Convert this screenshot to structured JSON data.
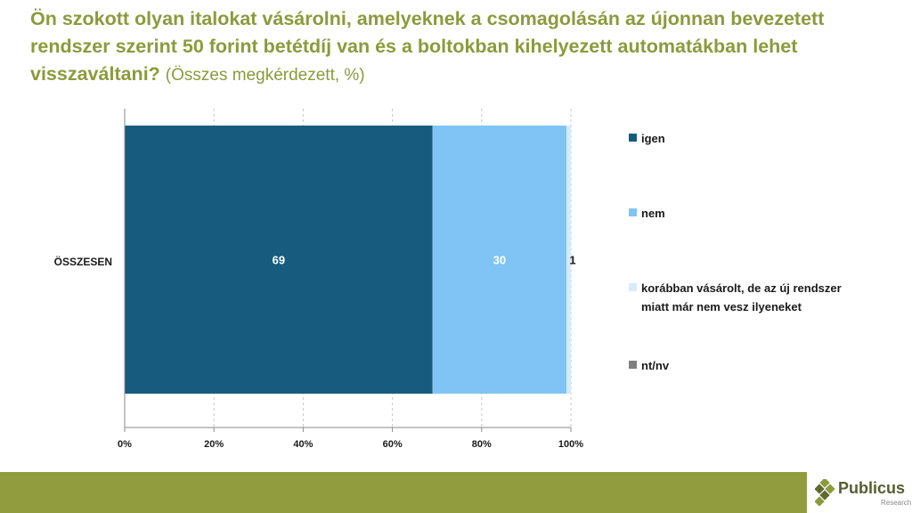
{
  "title": {
    "main": "Ön szokott olyan italokat vásárolni, amelyeknek a csomagolásán az újonnan bevezetett rendszer szerint 50 forint betétdíj van és a boltokban kihelyezett automatákban lehet visszaváltani?",
    "sub": "(Összes megkérdezett, %)"
  },
  "chart_data": {
    "type": "bar",
    "orientation": "horizontal",
    "stacked": true,
    "categories": [
      "ÖSSZESEN"
    ],
    "series": [
      {
        "name": "igen",
        "values": [
          69
        ],
        "color": "#175c7e",
        "label_color": "#ffffff"
      },
      {
        "name": "nem",
        "values": [
          30
        ],
        "color": "#7fc4f4",
        "label_color": "#ffffff"
      },
      {
        "name": "korábban vásárolt, de az új rendszer miatt már nem vesz ilyeneket",
        "values": [
          1
        ],
        "color": "#d6ebfb",
        "label_color": "#1a1a1a"
      },
      {
        "name": "nt/nv",
        "values": [
          0
        ],
        "color": "#7f7f7f",
        "label_color": "#1a1a1a"
      }
    ],
    "xlim": [
      0,
      100
    ],
    "xticks": [
      "0%",
      "20%",
      "40%",
      "60%",
      "80%",
      "100%"
    ],
    "grid": true,
    "legend_position": "right"
  },
  "legend": [
    {
      "label": "igen",
      "color": "#175c7e"
    },
    {
      "label": "nem",
      "color": "#7fc4f4"
    },
    {
      "label": "korábban vásárolt, de az új rendszer miatt már nem vesz ilyeneket",
      "color": "#d6ebfb"
    },
    {
      "label": "nt/nv",
      "color": "#7f7f7f"
    }
  ],
  "logo": {
    "name": "Publicus",
    "tagline": "Research",
    "colors": [
      "#8c9a3c",
      "#5f6a2e"
    ]
  }
}
